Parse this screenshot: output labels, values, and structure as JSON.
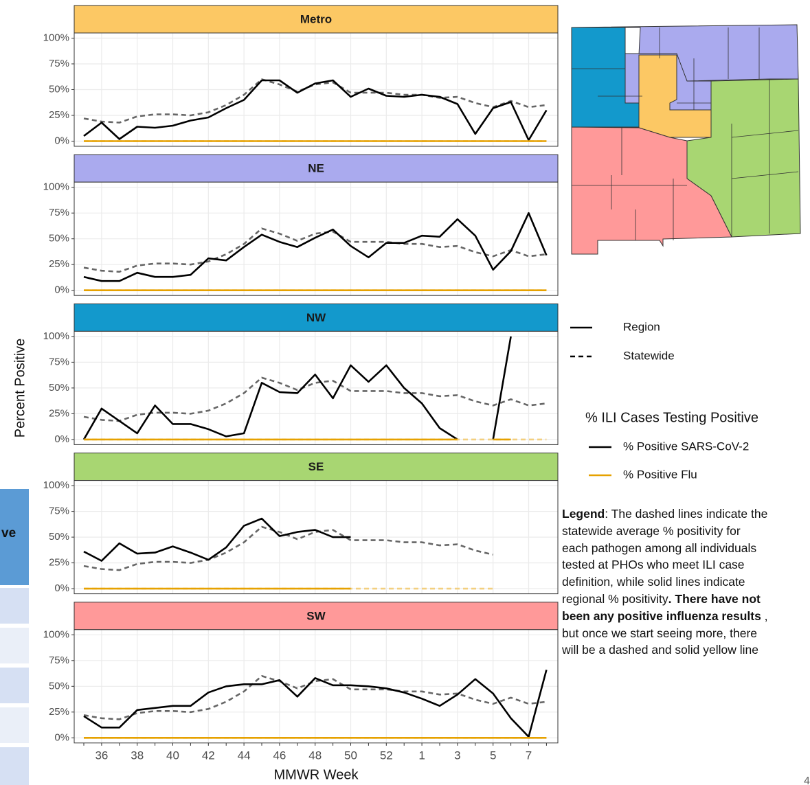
{
  "chart_data": {
    "type": "line",
    "categories": [
      null,
      "36",
      null,
      "38",
      null,
      "40",
      null,
      "42",
      null,
      "44",
      null,
      "46",
      null,
      "48",
      null,
      "50",
      null,
      "52",
      null,
      "1",
      null,
      "3",
      null,
      "5",
      null,
      "7",
      null
    ],
    "ylim": [
      -5,
      105
    ],
    "yticks": [
      {
        "value": 0,
        "label": "0%"
      },
      {
        "value": 25,
        "label": "25%"
      },
      {
        "value": 50,
        "label": "50%"
      },
      {
        "value": 75,
        "label": "75%"
      },
      {
        "value": 100,
        "label": "100%"
      }
    ],
    "grid": true,
    "x_label": "MMWR Week",
    "y_label": "Percent Positive",
    "panels": [
      {
        "title": "Metro",
        "color": "#fcc864",
        "series": [
          {
            "color": "#666666",
            "dash": true,
            "values": [
              22,
              19,
              18,
              24,
              26,
              26,
              25,
              28,
              35,
              45,
              60,
              55,
              48,
              55,
              57,
              47,
              47,
              47,
              45,
              45,
              42,
              43,
              37,
              33,
              39,
              33,
              35
            ]
          },
          {
            "color": "#000000",
            "dash": false,
            "values": [
              5,
              18,
              2,
              14,
              13,
              15,
              20,
              23,
              32,
              40,
              59,
              59,
              47,
              56,
              59,
              43,
              51,
              44,
              43,
              45,
              43,
              36,
              7,
              32,
              38,
              1,
              30
            ]
          },
          {
            "color": "#f3cf7f",
            "dash": true,
            "values": [
              0,
              0,
              0,
              0,
              0,
              0,
              0,
              0,
              0,
              0,
              0,
              0,
              0,
              0,
              0,
              0,
              0,
              0,
              0,
              0,
              0,
              0,
              0,
              0,
              0,
              0,
              0
            ]
          },
          {
            "color": "#e6a100",
            "dash": false,
            "values": [
              0,
              0,
              0,
              0,
              0,
              0,
              0,
              0,
              0,
              0,
              0,
              0,
              0,
              0,
              0,
              0,
              0,
              0,
              0,
              0,
              0,
              0,
              0,
              0,
              0,
              0,
              0
            ]
          }
        ]
      },
      {
        "title": "NE",
        "color": "#aaaaee",
        "series": [
          {
            "color": "#666666",
            "dash": true,
            "values": [
              22,
              19,
              18,
              24,
              26,
              26,
              25,
              28,
              35,
              45,
              60,
              55,
              48,
              55,
              57,
              47,
              47,
              47,
              45,
              45,
              42,
              43,
              37,
              33,
              39,
              33,
              35
            ]
          },
          {
            "color": "#000000",
            "dash": false,
            "values": [
              13,
              9,
              9,
              17,
              13,
              13,
              15,
              31,
              29,
              42,
              54,
              47,
              42,
              51,
              59,
              43,
              32,
              46,
              46,
              53,
              52,
              69,
              53,
              20,
              38,
              75,
              34
            ]
          },
          {
            "color": "#f3cf7f",
            "dash": true,
            "values": [
              0,
              0,
              0,
              0,
              0,
              0,
              0,
              0,
              0,
              0,
              0,
              0,
              0,
              0,
              0,
              0,
              0,
              0,
              0,
              0,
              0,
              0,
              0,
              0,
              0,
              0,
              0
            ]
          },
          {
            "color": "#e6a100",
            "dash": false,
            "values": [
              0,
              0,
              0,
              0,
              0,
              0,
              0,
              0,
              0,
              0,
              0,
              0,
              0,
              0,
              0,
              0,
              0,
              0,
              0,
              0,
              0,
              0,
              0,
              0,
              0,
              0,
              0
            ]
          }
        ]
      },
      {
        "title": "NW",
        "color": "#1399cc",
        "series": [
          {
            "color": "#666666",
            "dash": true,
            "values": [
              22,
              19,
              18,
              24,
              26,
              26,
              25,
              28,
              35,
              45,
              60,
              55,
              48,
              55,
              57,
              47,
              47,
              47,
              45,
              45,
              42,
              43,
              37,
              33,
              39,
              33,
              35
            ]
          },
          {
            "color": "#000000",
            "dash": false,
            "values": [
              0,
              30,
              18,
              6,
              33,
              15,
              15,
              10,
              3,
              6,
              55,
              46,
              45,
              63,
              40,
              72,
              56,
              72,
              50,
              35,
              11,
              0,
              null,
              0,
              100,
              null,
              null
            ]
          },
          {
            "color": "#f3cf7f",
            "dash": true,
            "values": [
              0,
              0,
              0,
              0,
              0,
              0,
              0,
              0,
              0,
              0,
              0,
              0,
              0,
              0,
              0,
              0,
              0,
              0,
              0,
              0,
              0,
              0,
              0,
              0,
              0,
              0,
              0
            ]
          },
          {
            "color": "#e6a100",
            "dash": false,
            "values": [
              0,
              0,
              0,
              0,
              0,
              0,
              0,
              0,
              0,
              0,
              0,
              0,
              0,
              0,
              0,
              0,
              0,
              0,
              0,
              0,
              0,
              0,
              null,
              0,
              0,
              null,
              null
            ]
          }
        ]
      },
      {
        "title": "SE",
        "color": "#a8d672",
        "series": [
          {
            "color": "#666666",
            "dash": true,
            "values": [
              22,
              19,
              18,
              24,
              26,
              26,
              25,
              28,
              35,
              45,
              60,
              55,
              48,
              55,
              57,
              47,
              47,
              47,
              45,
              45,
              42,
              43,
              37,
              33,
              null,
              null,
              null
            ]
          },
          {
            "color": "#000000",
            "dash": false,
            "values": [
              36,
              27,
              44,
              34,
              35,
              41,
              35,
              28,
              40,
              61,
              68,
              51,
              55,
              57,
              50,
              50,
              null,
              null,
              null,
              null,
              null,
              null,
              null,
              null,
              null,
              null,
              null
            ]
          },
          {
            "color": "#f3cf7f",
            "dash": true,
            "values": [
              0,
              0,
              0,
              0,
              0,
              0,
              0,
              0,
              0,
              0,
              0,
              0,
              0,
              0,
              0,
              0,
              0,
              0,
              0,
              0,
              0,
              0,
              0,
              0,
              null,
              null,
              null
            ]
          },
          {
            "color": "#e6a100",
            "dash": false,
            "values": [
              0,
              0,
              0,
              0,
              0,
              0,
              0,
              0,
              0,
              0,
              0,
              0,
              0,
              0,
              0,
              0,
              null,
              null,
              null,
              null,
              null,
              null,
              null,
              null,
              null,
              null,
              null
            ]
          }
        ]
      },
      {
        "title": "SW",
        "color": "#ff9999",
        "series": [
          {
            "color": "#666666",
            "dash": true,
            "values": [
              22,
              19,
              18,
              24,
              26,
              26,
              25,
              28,
              35,
              45,
              60,
              55,
              48,
              55,
              57,
              47,
              47,
              47,
              45,
              45,
              42,
              43,
              37,
              33,
              39,
              33,
              35
            ]
          },
          {
            "color": "#000000",
            "dash": false,
            "values": [
              21,
              10,
              10,
              27,
              29,
              31,
              31,
              44,
              50,
              52,
              52,
              56,
              40,
              58,
              51,
              51,
              50,
              48,
              44,
              38,
              31,
              42,
              57,
              43,
              19,
              1,
              66
            ]
          },
          {
            "color": "#f3cf7f",
            "dash": true,
            "values": [
              0,
              0,
              0,
              0,
              0,
              0,
              0,
              0,
              0,
              0,
              0,
              0,
              0,
              0,
              0,
              0,
              0,
              0,
              0,
              0,
              0,
              0,
              0,
              0,
              0,
              0,
              0
            ]
          },
          {
            "color": "#e6a100",
            "dash": false,
            "values": [
              0,
              0,
              0,
              0,
              0,
              0,
              0,
              0,
              0,
              0,
              0,
              0,
              0,
              0,
              0,
              0,
              0,
              0,
              0,
              0,
              0,
              0,
              0,
              0,
              0,
              0,
              0
            ]
          }
        ]
      }
    ],
    "linetype_legend": [
      {
        "label": "Region",
        "dash": false
      },
      {
        "label": "Statewide",
        "dash": true
      }
    ],
    "color_legend": {
      "title": "% ILI Cases Testing Positive",
      "items": [
        {
          "label": "% Positive SARS-CoV-2",
          "color": "#000000"
        },
        {
          "label": "% Positive Flu",
          "color": "#e6a100"
        }
      ]
    }
  },
  "legend_note": [
    {
      "text": "Legend",
      "bold": true
    },
    {
      "text": ": The dashed lines indicate the statewide average % positivity  for each pathogen among all individuals tested at PHOs who meet ILI case definition, while solid lines indicate regional % positivity",
      "bold": false
    },
    {
      "text": ". There have not been any positive influenza results",
      "bold": true
    },
    {
      "text": " , but once we start seeing more, there will be a dashed and solid yellow line",
      "bold": false
    }
  ],
  "side_table": {
    "header_fragment": "ve"
  },
  "page_number": "4"
}
